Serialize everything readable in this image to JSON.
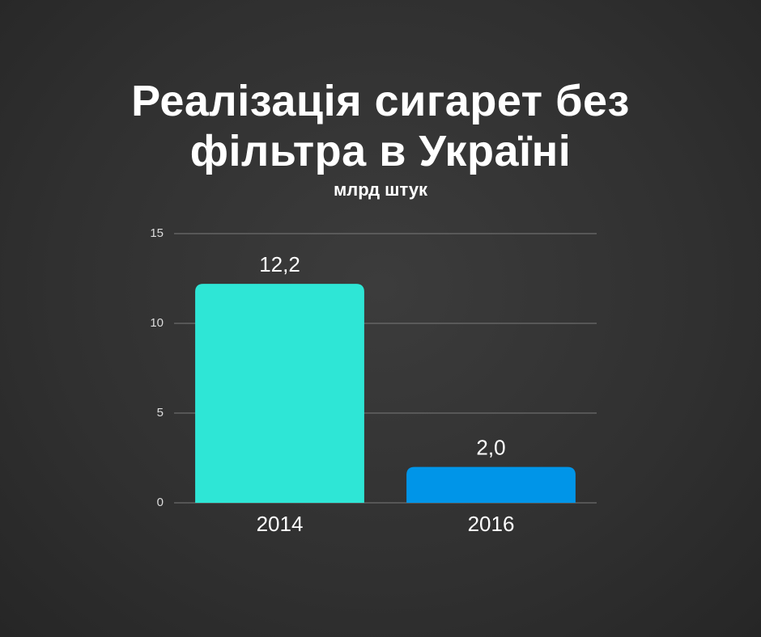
{
  "chart_data": {
    "type": "bar",
    "title": "Реалізація сигарет без фільтра в Україні",
    "subtitle": "млрд штук",
    "categories": [
      "2014",
      "2016"
    ],
    "values": [
      12.2,
      2.0
    ],
    "value_labels": [
      "12,2",
      "2,0"
    ],
    "colors": [
      "#2ee6d6",
      "#0095e8"
    ],
    "ylim": [
      0,
      15
    ],
    "yticks": [
      0,
      5,
      10,
      15
    ],
    "grid": true
  }
}
